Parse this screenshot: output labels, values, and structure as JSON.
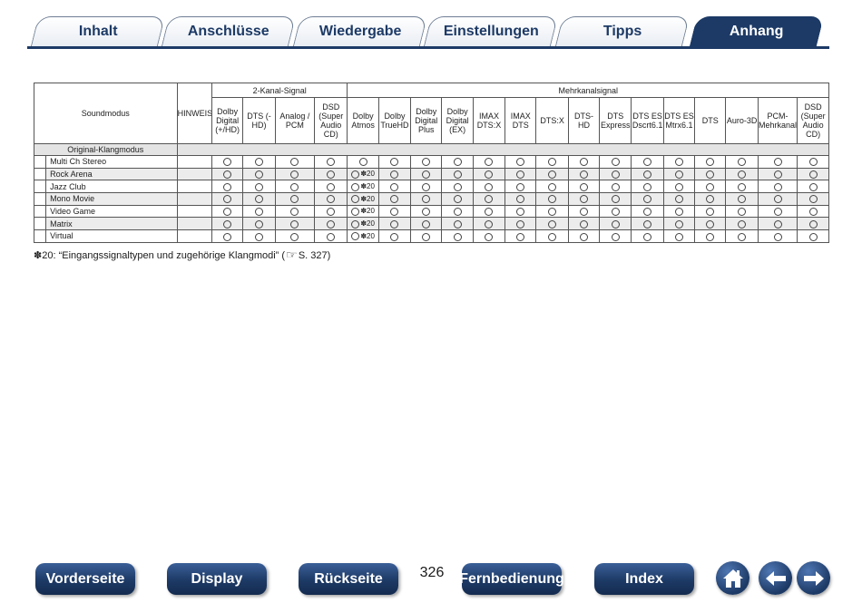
{
  "tabs": [
    "Inhalt",
    "Anschlüsse",
    "Wiedergabe",
    "Einstellungen",
    "Tipps",
    "Anhang"
  ],
  "table": {
    "soundmodus_label": "Soundmodus",
    "hinweis_label": "HINWEIS",
    "group_2ch": "2-Kanal-Signal",
    "group_multi": "Mehrkanalsignal",
    "columns_2ch": [
      "Dolby Digital (+/HD)",
      "DTS (-HD)",
      "Analog / PCM",
      "DSD (Super Audio CD)"
    ],
    "columns_multi": [
      "Dolby Atmos",
      "Dolby TrueHD",
      "Dolby Digital Plus",
      "Dolby Digital (EX)",
      "IMAX DTS:X",
      "IMAX DTS",
      "DTS:X",
      "DTS-HD",
      "DTS Express",
      "DTS ES Dscrt6.1",
      "DTS ES Mtrx6.1",
      "DTS",
      "Auro-3D",
      "PCM-Mehrkanal",
      "DSD (Super Audio CD)"
    ],
    "group_row_label": "Original-Klangmodus",
    "rows": [
      {
        "name": "Multi Ch Stereo",
        "atmos_note": ""
      },
      {
        "name": "Rock Arena",
        "atmos_note": "✽20"
      },
      {
        "name": "Jazz Club",
        "atmos_note": "✽20"
      },
      {
        "name": "Mono Movie",
        "atmos_note": "✽20"
      },
      {
        "name": "Video Game",
        "atmos_note": "✽20"
      },
      {
        "name": "Matrix",
        "atmos_note": "✽20"
      },
      {
        "name": "Virtual",
        "atmos_note": "✽20"
      }
    ]
  },
  "footnote": {
    "text": "✽20: “Eingangssignaltypen und zugehörige Klangmodi” (",
    "page_ref": "S. 327)"
  },
  "nav": {
    "front": "Vorderseite",
    "display": "Display",
    "back": "Rückseite",
    "page_number": "326",
    "remote": "Fernbedienung",
    "index": "Index"
  },
  "colors": {
    "accent": "#1d3a66",
    "tab_border": "#6f7f96"
  }
}
